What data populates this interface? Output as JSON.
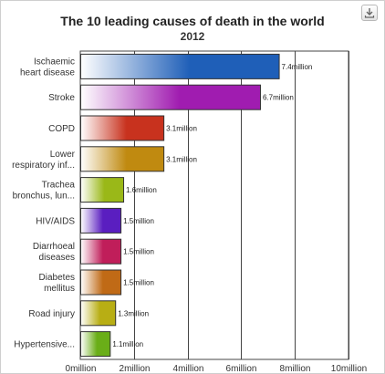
{
  "chart_data": {
    "type": "bar",
    "orientation": "horizontal",
    "title": "The 10 leading causes of death in the world",
    "subtitle": "2012",
    "categories": [
      [
        "Ischaemic",
        "heart disease"
      ],
      [
        "Stroke"
      ],
      [
        "COPD"
      ],
      [
        "Lower",
        "respiratory inf..."
      ],
      [
        "Trachea",
        "bronchus, lun..."
      ],
      [
        "HIV/AIDS"
      ],
      [
        "Diarrhoeal",
        "diseases"
      ],
      [
        "Diabetes",
        "mellitus"
      ],
      [
        "Road injury"
      ],
      [
        "Hypertensive..."
      ]
    ],
    "values": [
      7.4,
      6.7,
      3.1,
      3.1,
      1.6,
      1.5,
      1.5,
      1.5,
      1.3,
      1.1
    ],
    "data_labels": [
      "7.4million",
      "6.7million",
      "3.1million",
      "3.1million",
      "1.6million",
      "1.5million",
      "1.5million",
      "1.5million",
      "1.3million",
      "1.1million"
    ],
    "colors": [
      "#1f5fb8",
      "#a01cb0",
      "#c8321e",
      "#c08a10",
      "#9ab818",
      "#5a1ec0",
      "#c01e5a",
      "#c06a16",
      "#b8ae14",
      "#6aae18"
    ],
    "xlim": [
      0,
      10
    ],
    "xticks": [
      "0million",
      "2million",
      "4million",
      "6million",
      "8million",
      "10million"
    ],
    "grid": true,
    "legend": "none"
  },
  "toolbar": {
    "export_icon": "download-icon"
  }
}
